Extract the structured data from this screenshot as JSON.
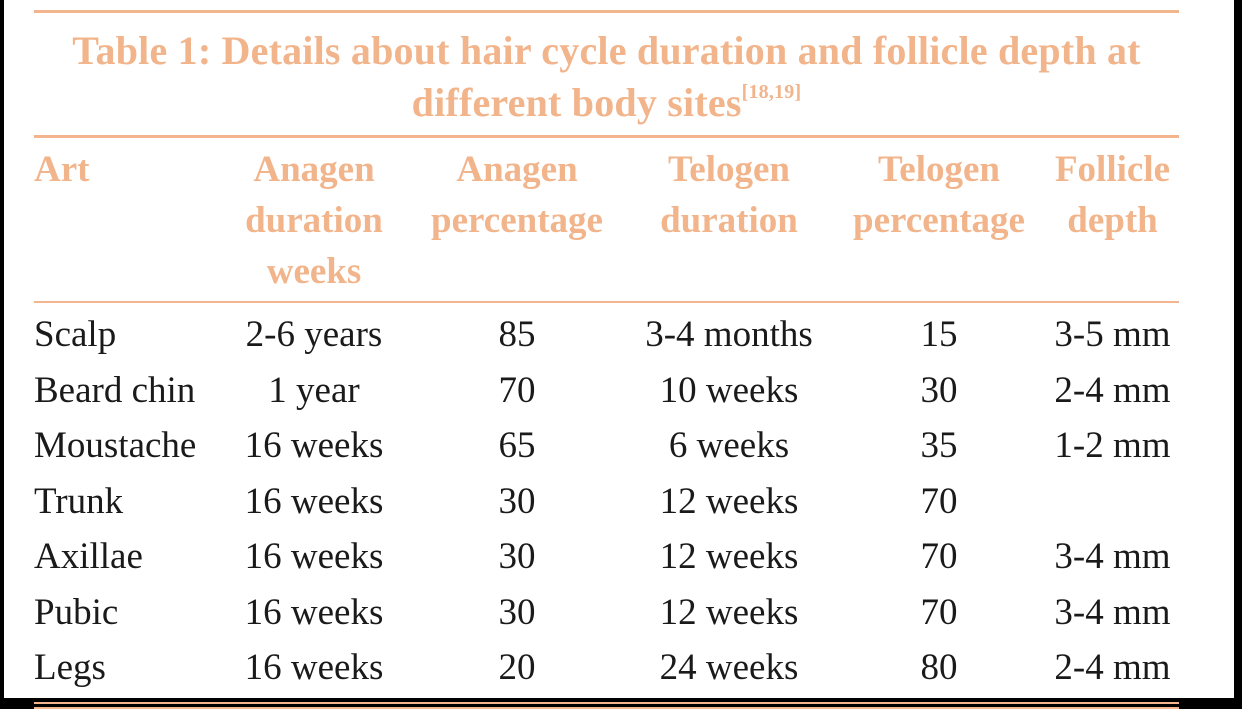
{
  "table": {
    "title_main": "Table 1: Details about hair cycle duration and follicle depth at different body sites",
    "title_refs": "[18,19]",
    "columns": [
      "Art",
      "Anagen\nduration\nweeks",
      "Anagen\npercentage",
      "Telogen\nduration",
      "Telogen\npercentage",
      "Follicle\ndepth"
    ],
    "rows": [
      [
        "Scalp",
        "2-6 years",
        "85",
        "3-4 months",
        "15",
        "3-5 mm"
      ],
      [
        "Beard chin",
        "1 year",
        "70",
        "10 weeks",
        "30",
        "2-4 mm"
      ],
      [
        "Moustache",
        "16 weeks",
        "65",
        "6 weeks",
        "35",
        "1-2 mm"
      ],
      [
        "Trunk",
        "16 weeks",
        "30",
        "12 weeks",
        "70",
        ""
      ],
      [
        "Axillae",
        "16 weeks",
        "30",
        "12 weeks",
        "70",
        "3-4 mm"
      ],
      [
        "Pubic",
        "16 weeks",
        "30",
        "12 weeks",
        "70",
        "3-4 mm"
      ],
      [
        "Legs",
        "16 weeks",
        "20",
        "24 weeks",
        "80",
        "2-4 mm"
      ]
    ]
  },
  "colors": {
    "accent": "#f1b48b",
    "rule": "#f3b58d",
    "text": "#1a1a1a",
    "background": "#ffffff",
    "letterbox": "#000000"
  }
}
